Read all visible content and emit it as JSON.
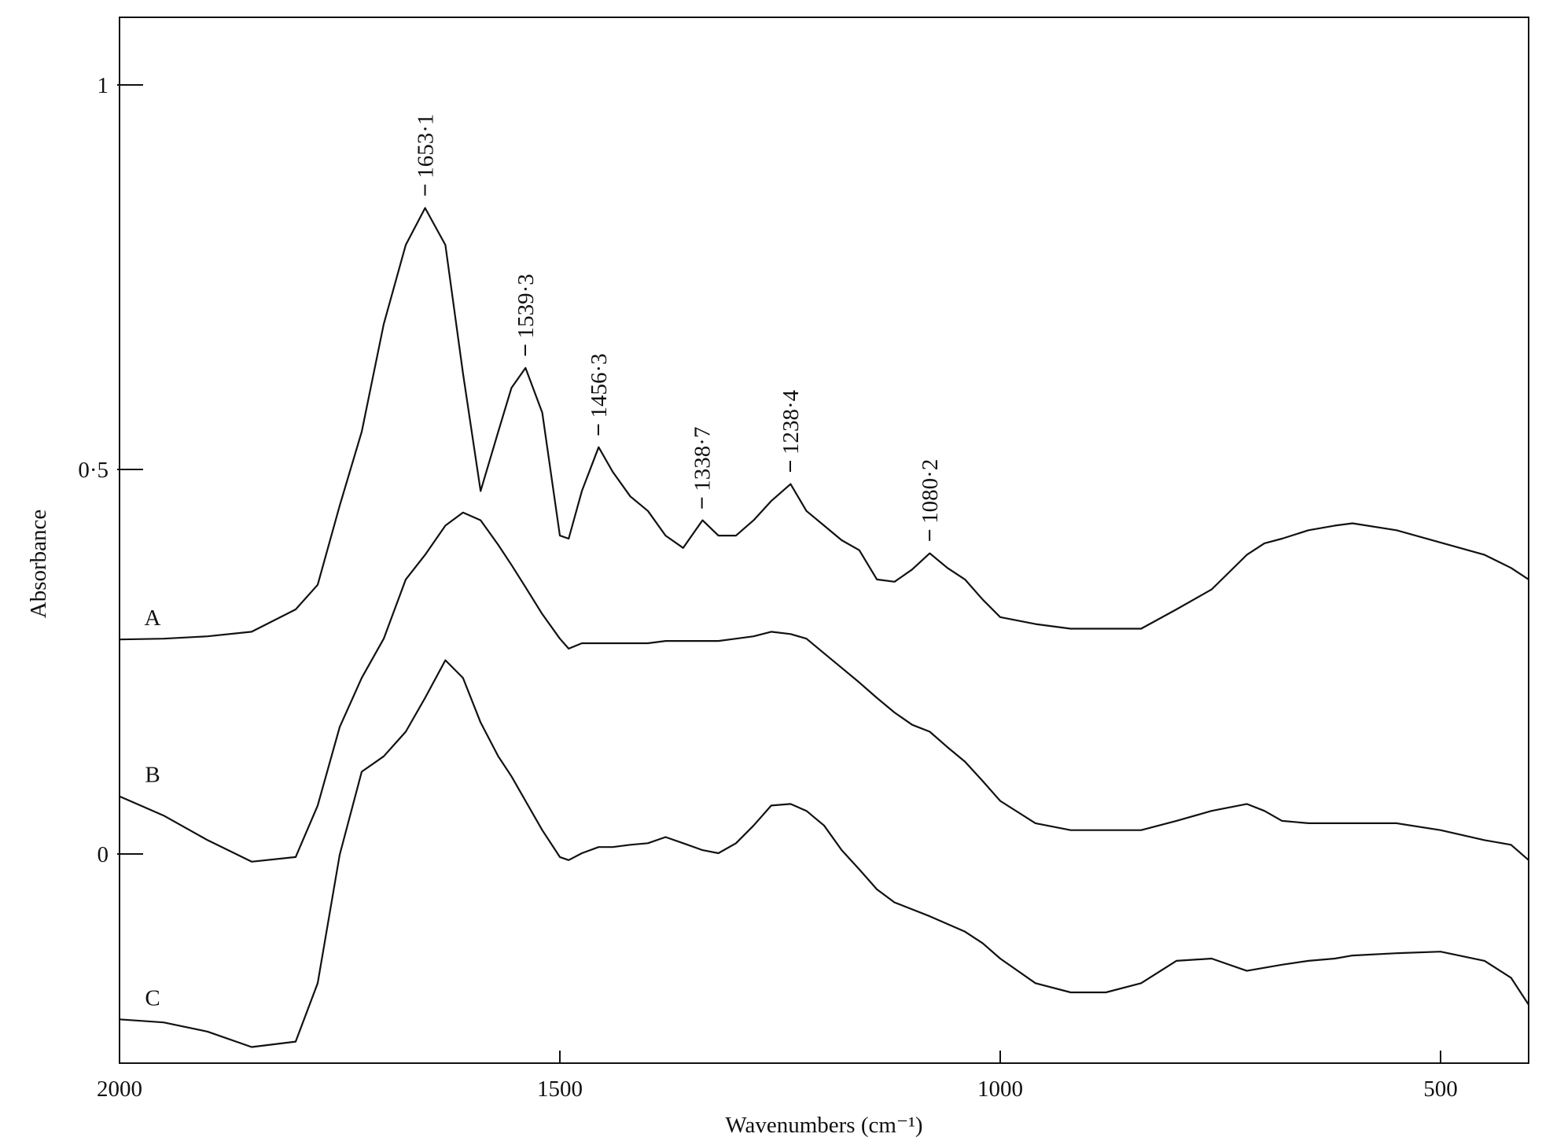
{
  "chart_data": {
    "type": "line",
    "xlabel": "Wavenumbers (cm⁻¹)",
    "ylabel": "Absorbance",
    "x": [
      2000,
      1950,
      1900,
      1850,
      1800,
      1775,
      1750,
      1725,
      1700,
      1675,
      1653,
      1630,
      1610,
      1590,
      1570,
      1555,
      1539,
      1520,
      1500,
      1490,
      1475,
      1456,
      1440,
      1420,
      1400,
      1380,
      1360,
      1338,
      1320,
      1300,
      1280,
      1260,
      1238,
      1220,
      1200,
      1180,
      1160,
      1140,
      1120,
      1100,
      1080,
      1060,
      1040,
      1020,
      1000,
      960,
      920,
      880,
      840,
      800,
      760,
      720,
      700,
      680,
      650,
      620,
      600,
      550,
      500,
      450,
      420,
      400
    ],
    "series": [
      {
        "name": "A",
        "color": "#111111",
        "values": [
          0.279,
          0.28,
          0.283,
          0.289,
          0.318,
          0.35,
          0.453,
          0.549,
          0.689,
          0.792,
          0.84,
          0.792,
          0.625,
          0.472,
          0.549,
          0.606,
          0.632,
          0.574,
          0.414,
          0.41,
          0.472,
          0.529,
          0.497,
          0.465,
          0.446,
          0.414,
          0.398,
          0.434,
          0.414,
          0.414,
          0.434,
          0.459,
          0.481,
          0.446,
          0.427,
          0.408,
          0.395,
          0.357,
          0.354,
          0.37,
          0.391,
          0.372,
          0.357,
          0.331,
          0.308,
          0.299,
          0.293,
          0.293,
          0.293,
          0.318,
          0.344,
          0.389,
          0.404,
          0.41,
          0.421,
          0.427,
          0.43,
          0.421,
          0.405,
          0.389,
          0.372,
          0.357
        ]
      },
      {
        "name": "B",
        "color": "#111111",
        "values": [
          0.075,
          0.05,
          0.018,
          -0.01,
          -0.004,
          0.063,
          0.165,
          0.229,
          0.28,
          0.357,
          0.389,
          0.427,
          0.444,
          0.434,
          0.402,
          0.376,
          0.347,
          0.312,
          0.28,
          0.267,
          0.274,
          0.274,
          0.274,
          0.274,
          0.274,
          0.277,
          0.277,
          0.277,
          0.277,
          0.28,
          0.283,
          0.289,
          0.286,
          0.28,
          0.261,
          0.242,
          0.223,
          0.203,
          0.184,
          0.168,
          0.159,
          0.139,
          0.12,
          0.095,
          0.069,
          0.04,
          0.031,
          0.031,
          0.031,
          0.043,
          0.056,
          0.065,
          0.056,
          0.043,
          0.04,
          0.04,
          0.04,
          0.04,
          0.031,
          0.018,
          0.012,
          -0.008
        ]
      },
      {
        "name": "C",
        "color": "#111111",
        "values": [
          -0.215,
          -0.219,
          -0.231,
          -0.251,
          -0.244,
          -0.168,
          -0.001,
          0.107,
          0.127,
          0.159,
          0.203,
          0.252,
          0.229,
          0.171,
          0.127,
          0.101,
          0.069,
          0.031,
          -0.004,
          -0.008,
          0.001,
          0.009,
          0.009,
          0.012,
          0.014,
          0.022,
          0.014,
          0.005,
          0.001,
          0.014,
          0.037,
          0.063,
          0.065,
          0.056,
          0.037,
          0.005,
          -0.02,
          -0.046,
          -0.063,
          -0.072,
          -0.081,
          -0.091,
          -0.101,
          -0.116,
          -0.136,
          -0.168,
          -0.18,
          -0.18,
          -0.168,
          -0.139,
          -0.136,
          -0.152,
          -0.148,
          -0.144,
          -0.139,
          -0.136,
          -0.132,
          -0.129,
          -0.127,
          -0.139,
          -0.161,
          -0.196
        ]
      }
    ],
    "annotations": [
      {
        "text": "1653·1",
        "x": 1653.1
      },
      {
        "text": "1539·3",
        "x": 1539.3
      },
      {
        "text": "1456·3",
        "x": 1456.3
      },
      {
        "text": "1338·7",
        "x": 1338.7
      },
      {
        "text": "1238·4",
        "x": 1238.4
      },
      {
        "text": "1080·2",
        "x": 1080.2
      }
    ],
    "xlim": [
      2000,
      400
    ],
    "ylim": [
      -0.272,
      1.088
    ],
    "xticks": [
      2000,
      1500,
      1000,
      500
    ],
    "yticks": [
      0,
      {
        "value": 0.5,
        "label": "0·5"
      },
      1
    ],
    "grid": false
  }
}
